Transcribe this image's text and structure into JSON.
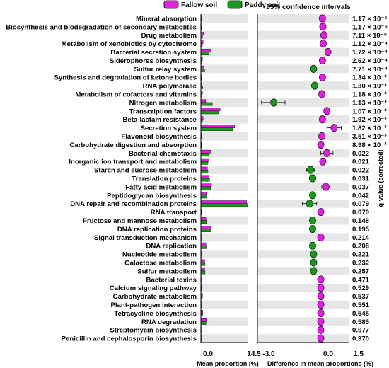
{
  "chart_data": {
    "type": "bar",
    "title": "95% confidence intervals",
    "legend": {
      "placement": "top-left",
      "entries": [
        {
          "name": "Fallow soil",
          "color": "#e020e0"
        },
        {
          "name": "Paddy soil",
          "color": "#1a9a1a"
        }
      ]
    },
    "left_panel": {
      "xlabel": "Mean proportion (%)",
      "xlim": [
        0,
        14.5
      ],
      "ticks": [
        "0.0",
        "14.5"
      ]
    },
    "right_panel": {
      "xlabel": "Difference in mean proportions (%)",
      "xlim": [
        -3.0,
        1.5
      ],
      "ticks": [
        "-3.0",
        "0.0",
        "1.5"
      ],
      "ylabel": "q-value (corrected)"
    },
    "colors": {
      "fallow": "#e020e0",
      "paddy": "#1a9a1a",
      "band": "#e6e6e6"
    },
    "rows": [
      {
        "name": "Mineral absorption",
        "fallow": 0.25,
        "paddy": 0.05,
        "diff": 0.18,
        "ci": [
          0.14,
          0.22
        ],
        "q": "1.17 × 10⁻⁵",
        "sign": "fallow"
      },
      {
        "name": "Biosynthesis and biodegradation of secondary metabolites",
        "fallow": 0.3,
        "paddy": 0.1,
        "diff": 0.2,
        "ci": [
          0.15,
          0.25
        ],
        "q": "1.17 × 10⁻⁵",
        "sign": "fallow"
      },
      {
        "name": "Drug metabolism",
        "fallow": 0.8,
        "paddy": 0.5,
        "diff": 0.25,
        "ci": [
          0.18,
          0.32
        ],
        "q": "7.11 × 10⁻⁵",
        "sign": "fallow"
      },
      {
        "name": "Metabolism of xenobiotics by cytochrome",
        "fallow": 0.7,
        "paddy": 0.45,
        "diff": 0.22,
        "ci": [
          0.16,
          0.28
        ],
        "q": "1.12 × 10⁻⁴",
        "sign": "fallow"
      },
      {
        "name": "Bacterial secretion system",
        "fallow": 3.0,
        "paddy": 2.6,
        "diff": 0.45,
        "ci": [
          0.32,
          0.58
        ],
        "q": "1.72 × 10⁻⁴",
        "sign": "fallow"
      },
      {
        "name": "Siderophores biosynthesis",
        "fallow": 0.5,
        "paddy": 0.3,
        "diff": 0.18,
        "ci": [
          0.12,
          0.24
        ],
        "q": "2.62 × 10⁻⁴",
        "sign": "fallow"
      },
      {
        "name": "Sulfur relay system",
        "fallow": 1.0,
        "paddy": 1.2,
        "diff": -0.25,
        "ci": [
          -0.32,
          -0.18
        ],
        "q": "7.71 × 10⁻⁴",
        "sign": "paddy"
      },
      {
        "name": "Synthesis and degradation of ketone bodies",
        "fallow": 0.3,
        "paddy": 0.1,
        "diff": 0.18,
        "ci": [
          0.12,
          0.24
        ],
        "q": "1.34 × 10⁻³",
        "sign": "fallow"
      },
      {
        "name": "RNA polymerase",
        "fallow": 0.4,
        "paddy": 0.6,
        "diff": -0.2,
        "ci": [
          -0.26,
          -0.14
        ],
        "q": "1.30 × 10⁻³",
        "sign": "paddy"
      },
      {
        "name": "Metabolism of cofactors and vitamins",
        "fallow": 0.5,
        "paddy": 0.35,
        "diff": 0.15,
        "ci": [
          0.1,
          0.2
        ],
        "q": "1.18 × 10⁻³",
        "sign": "fallow"
      },
      {
        "name": "Nitrogen metabolism",
        "fallow": 1.5,
        "paddy": 3.6,
        "diff": -2.2,
        "ci": [
          -2.8,
          -1.65
        ],
        "q": "1.13 × 10⁻³",
        "sign": "paddy"
      },
      {
        "name": "Transcription factors",
        "fallow": 6.0,
        "paddy": 5.5,
        "diff": 0.4,
        "ci": [
          0.28,
          0.52
        ],
        "q": "1.07 × 10⁻³",
        "sign": "fallow"
      },
      {
        "name": "Beta-lactam resistance",
        "fallow": 0.7,
        "paddy": 0.5,
        "diff": 0.18,
        "ci": [
          0.12,
          0.24
        ],
        "q": "1.92 × 10⁻³",
        "sign": "fallow"
      },
      {
        "name": "Secretion system",
        "fallow": 10.5,
        "paddy": 9.9,
        "diff": 0.75,
        "ci": [
          0.4,
          1.1
        ],
        "q": "1.82 × 10⁻³",
        "sign": "fallow"
      },
      {
        "name": "Flavonoid biosynthesis",
        "fallow": 0.2,
        "paddy": 0.05,
        "diff": 0.15,
        "ci": [
          0.1,
          0.2
        ],
        "q": "3.51 × 10⁻³",
        "sign": "fallow"
      },
      {
        "name": "Carbohydrate digestion and absorption",
        "fallow": 0.2,
        "paddy": 0.1,
        "diff": 0.1,
        "ci": [
          0.06,
          0.14
        ],
        "q": "8.98 × 10⁻³",
        "sign": "fallow"
      },
      {
        "name": "Bacterial chemotaxis",
        "fallow": 3.0,
        "paddy": 2.6,
        "diff": 0.4,
        "ci": [
          0.1,
          0.7
        ],
        "q": "0.022",
        "sign": "fallow"
      },
      {
        "name": "Inorganic ion transport and metabolism",
        "fallow": 2.6,
        "paddy": 2.2,
        "diff": 0.2,
        "ci": [
          0.1,
          0.3
        ],
        "q": "0.021",
        "sign": "fallow"
      },
      {
        "name": "Starch and sucrose metabolism",
        "fallow": 2.0,
        "paddy": 2.2,
        "diff": -0.4,
        "ci": [
          -0.6,
          -0.2
        ],
        "q": "0.022",
        "sign": "paddy"
      },
      {
        "name": "Translation proteins",
        "fallow": 2.5,
        "paddy": 2.7,
        "diff": -0.3,
        "ci": [
          -0.45,
          -0.15
        ],
        "q": "0.031",
        "sign": "paddy"
      },
      {
        "name": "Fatty acid metabolism",
        "fallow": 3.3,
        "paddy": 3.0,
        "diff": 0.35,
        "ci": [
          0.15,
          0.55
        ],
        "q": "0.037",
        "sign": "fallow"
      },
      {
        "name": "Peptidoglycan biosynthesis",
        "fallow": 1.7,
        "paddy": 1.8,
        "diff": -0.3,
        "ci": [
          -0.42,
          -0.18
        ],
        "q": "0.042",
        "sign": "paddy"
      },
      {
        "name": "DNA repair and recombination proteins",
        "fallow": 14.2,
        "paddy": 14.4,
        "diff": -0.45,
        "ci": [
          -0.8,
          -0.1
        ],
        "q": "0.079",
        "sign": "paddy"
      },
      {
        "name": "RNA transport",
        "fallow": 0.2,
        "paddy": 0.1,
        "diff": 0.1,
        "ci": [
          0.06,
          0.14
        ],
        "q": "0.079",
        "sign": "fallow"
      },
      {
        "name": "Fructose and mannose metabolism",
        "fallow": 1.6,
        "paddy": 1.7,
        "diff": -0.3,
        "ci": [
          -0.4,
          -0.2
        ],
        "q": "0.148",
        "sign": "paddy"
      },
      {
        "name": "DNA replication proteins",
        "fallow": 3.0,
        "paddy": 3.2,
        "diff": -0.3,
        "ci": [
          -0.4,
          -0.2
        ],
        "q": "0.195",
        "sign": "paddy"
      },
      {
        "name": "Signal transduction mechanism",
        "fallow": 0.3,
        "paddy": 0.25,
        "diff": 0.1,
        "ci": [
          0.05,
          0.15
        ],
        "q": "0.214",
        "sign": "fallow"
      },
      {
        "name": "DNA replication",
        "fallow": 1.6,
        "paddy": 1.7,
        "diff": -0.3,
        "ci": [
          -0.4,
          -0.2
        ],
        "q": "0.208",
        "sign": "paddy"
      },
      {
        "name": "Nucleotide metabolism",
        "fallow": 0.3,
        "paddy": 0.35,
        "diff": -0.25,
        "ci": [
          -0.32,
          -0.18
        ],
        "q": "0.221",
        "sign": "paddy"
      },
      {
        "name": "Galactose metabolism",
        "fallow": 1.2,
        "paddy": 1.3,
        "diff": -0.25,
        "ci": [
          -0.32,
          -0.18
        ],
        "q": "0.232",
        "sign": "paddy"
      },
      {
        "name": "Sulfur metabolism",
        "fallow": 1.2,
        "paddy": 1.3,
        "diff": -0.25,
        "ci": [
          -0.32,
          -0.18
        ],
        "q": "0.257",
        "sign": "paddy"
      },
      {
        "name": "Bacterial toxins",
        "fallow": 0.3,
        "paddy": 0.25,
        "diff": 0.1,
        "ci": [
          0.05,
          0.15
        ],
        "q": "0.471",
        "sign": "fallow"
      },
      {
        "name": "Calcium signaling pathway",
        "fallow": 0.2,
        "paddy": 0.15,
        "diff": 0.1,
        "ci": [
          0.05,
          0.15
        ],
        "q": "0.529",
        "sign": "fallow"
      },
      {
        "name": "Carbohydrate metabolism",
        "fallow": 0.5,
        "paddy": 0.45,
        "diff": 0.1,
        "ci": [
          0.05,
          0.15
        ],
        "q": "0.537",
        "sign": "fallow"
      },
      {
        "name": "Plant-pathogen interaction",
        "fallow": 0.3,
        "paddy": 0.25,
        "diff": 0.1,
        "ci": [
          0.05,
          0.15
        ],
        "q": "0.551",
        "sign": "fallow"
      },
      {
        "name": "Tetracycline biosynthesis",
        "fallow": 0.6,
        "paddy": 0.55,
        "diff": 0.1,
        "ci": [
          0.05,
          0.15
        ],
        "q": "0.545",
        "sign": "fallow"
      },
      {
        "name": "RNA degradation",
        "fallow": 1.7,
        "paddy": 1.6,
        "diff": 0.1,
        "ci": [
          0.05,
          0.15
        ],
        "q": "0.585",
        "sign": "fallow"
      },
      {
        "name": "Streptomycin biosynthesis",
        "fallow": 0.3,
        "paddy": 0.25,
        "diff": 0.1,
        "ci": [
          0.05,
          0.15
        ],
        "q": "0.677",
        "sign": "fallow"
      },
      {
        "name": "Penicillin and cephalosporin biosynthesis",
        "fallow": 0.3,
        "paddy": 0.25,
        "diff": 0.1,
        "ci": [
          0.05,
          0.15
        ],
        "q": "0.970",
        "sign": "fallow"
      }
    ]
  }
}
